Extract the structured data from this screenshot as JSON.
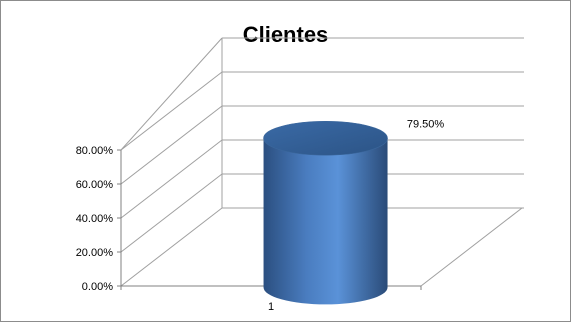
{
  "chart_data": {
    "type": "bar",
    "title": "Clientes",
    "categories": [
      "1"
    ],
    "series": [
      {
        "values": [
          0.795
        ],
        "data_label": "79.50%"
      }
    ],
    "ylim": [
      0,
      0.8
    ],
    "y_ticks": [
      0,
      0.2,
      0.4,
      0.6,
      0.8
    ],
    "y_tick_labels": [
      "0.00%",
      "20.00%",
      "40.00%",
      "60.00%",
      "80.00%"
    ],
    "bar_shape": "cylinder",
    "three_d": true,
    "grid": true,
    "legend": "none",
    "colors": {
      "bar": "#4f81bd",
      "bar_dark": "#2c4d75",
      "grid": "#a0a0a0",
      "frame": "#8c8c8c"
    }
  }
}
